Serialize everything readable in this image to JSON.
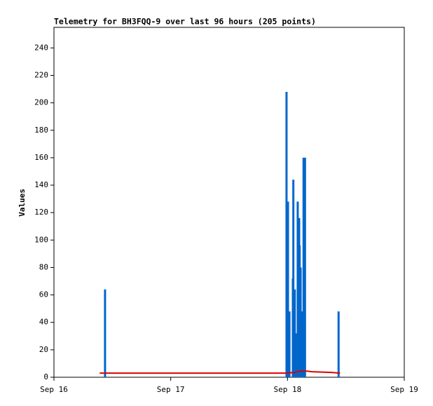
{
  "chart_data": {
    "type": "line",
    "title": "Telemetry for BH3FQQ-9 over last 96 hours (205 points)",
    "y_label": "Values",
    "xlim": [
      0,
      72
    ],
    "xticks": [
      {
        "value": 0,
        "label": "Sep 16"
      },
      {
        "value": 24,
        "label": "Sep 17"
      },
      {
        "value": 48,
        "label": "Sep 18"
      },
      {
        "value": 72,
        "label": "Sep 19"
      }
    ],
    "ylim": [
      0,
      255
    ],
    "yticks": [
      0,
      20,
      40,
      60,
      80,
      100,
      120,
      140,
      160,
      180,
      200,
      220,
      240
    ],
    "series": [
      {
        "style": "impulse",
        "color": "#0066cc",
        "x": [
          10.5,
          47.8,
          48.1,
          48.4,
          49.1,
          49.2,
          49.5,
          49.7,
          50.1,
          50.4,
          50.5,
          50.7,
          51.0,
          51.3,
          51.6,
          58.5
        ],
        "values": [
          64,
          208,
          128,
          48,
          72,
          144,
          64,
          32,
          128,
          116,
          96,
          80,
          48,
          160,
          160,
          48
        ]
      },
      {
        "style": "line",
        "color": "#dd0000",
        "x": [
          9.4,
          47.5,
          49.5,
          50.5,
          52,
          53,
          57,
          58.8
        ],
        "values": [
          3,
          3,
          3.5,
          4.5,
          4.5,
          4,
          3.5,
          3
        ]
      }
    ]
  }
}
